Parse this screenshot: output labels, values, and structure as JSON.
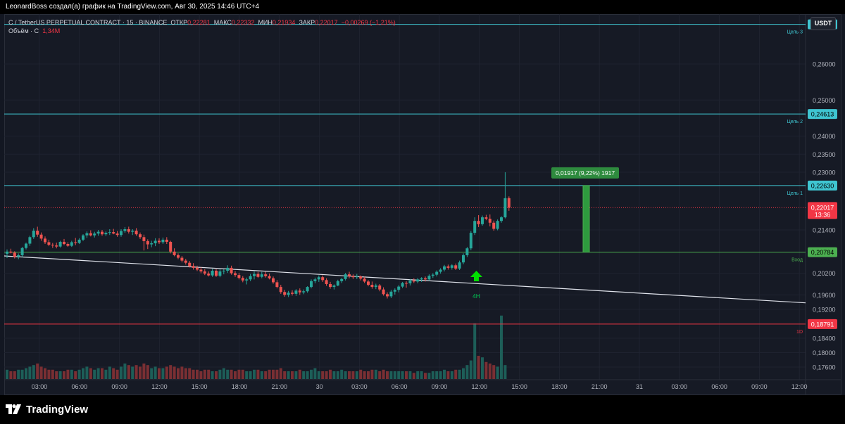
{
  "header": {
    "byline": "LeonardBoss создал(а) график на TradingView.com, Авг 30, 2025 14:46 UTC+4"
  },
  "legend": {
    "symbol": "C / TetherUS PERPETUAL CONTRACT · 15 · BINANCE",
    "open_label": "ОТКР",
    "open": "0,22281",
    "high_label": "МАКС",
    "high": "0,22332",
    "low_label": "МИН",
    "low": "0,21934",
    "close_label": "ЗАКР",
    "close": "0,22017",
    "change": "−0,00269 (−1,21%)",
    "volume_label": "Объём · C",
    "volume": "1,34M"
  },
  "currency": "USDT",
  "footer": {
    "logo_text": "TradingView"
  },
  "colors": {
    "up": "#26a69a",
    "down": "#ef5350",
    "target_line": "#3fc5d1",
    "entry_line": "#4caf50",
    "stop_line": "#f23645",
    "trend_line": "#e0e3eb",
    "measure_box": "#2e9a3e"
  },
  "chart_data": {
    "type": "candlestick",
    "time_ticks": [
      "03:00",
      "06:00",
      "09:00",
      "12:00",
      "15:00",
      "18:00",
      "21:00",
      "30",
      "03:00",
      "06:00",
      "09:00",
      "12:00",
      "15:00",
      "18:00",
      "21:00",
      "31",
      "03:00",
      "06:00",
      "09:00",
      "12:00"
    ],
    "price_ticks": [
      "0,26000",
      "0,25000",
      "0,24000",
      "0,23500",
      "0,23000",
      "0,21400",
      "0,20200",
      "0,19600",
      "0,19200",
      "0,18400",
      "0,18000",
      "0,17600"
    ],
    "candles": [
      [
        0.2074,
        0.2086,
        0.2062,
        0.208
      ],
      [
        0.208,
        0.2088,
        0.2075,
        0.2077
      ],
      [
        0.2077,
        0.2081,
        0.2061,
        0.2066
      ],
      [
        0.2066,
        0.2075,
        0.2059,
        0.207
      ],
      [
        0.207,
        0.2093,
        0.2065,
        0.209
      ],
      [
        0.209,
        0.2105,
        0.2086,
        0.2102
      ],
      [
        0.2102,
        0.2124,
        0.2096,
        0.212
      ],
      [
        0.212,
        0.2145,
        0.2115,
        0.2138
      ],
      [
        0.2138,
        0.2149,
        0.2121,
        0.2127
      ],
      [
        0.2127,
        0.2133,
        0.211,
        0.2116
      ],
      [
        0.2116,
        0.2122,
        0.2101,
        0.2106
      ],
      [
        0.2106,
        0.2113,
        0.2095,
        0.2099
      ],
      [
        0.2099,
        0.2104,
        0.209,
        0.2097
      ],
      [
        0.2097,
        0.2105,
        0.2089,
        0.2094
      ],
      [
        0.2094,
        0.211,
        0.2091,
        0.2107
      ],
      [
        0.2107,
        0.2115,
        0.2098,
        0.2101
      ],
      [
        0.2101,
        0.2106,
        0.2093,
        0.2096
      ],
      [
        0.2096,
        0.211,
        0.2093,
        0.2106
      ],
      [
        0.2106,
        0.2118,
        0.2098,
        0.2104
      ],
      [
        0.2104,
        0.2117,
        0.2101,
        0.2113
      ],
      [
        0.2113,
        0.2128,
        0.2109,
        0.2125
      ],
      [
        0.2125,
        0.2136,
        0.2118,
        0.2131
      ],
      [
        0.2131,
        0.2139,
        0.2122,
        0.2125
      ],
      [
        0.2125,
        0.2135,
        0.2119,
        0.213
      ],
      [
        0.213,
        0.214,
        0.2124,
        0.2135
      ],
      [
        0.2135,
        0.214,
        0.2124,
        0.2128
      ],
      [
        0.2128,
        0.2136,
        0.2123,
        0.2132
      ],
      [
        0.2132,
        0.2142,
        0.2126,
        0.2134
      ],
      [
        0.2134,
        0.2143,
        0.2128,
        0.213
      ],
      [
        0.213,
        0.2137,
        0.2121,
        0.2126
      ],
      [
        0.2126,
        0.2142,
        0.2121,
        0.2137
      ],
      [
        0.2137,
        0.2148,
        0.2132,
        0.2142
      ],
      [
        0.2142,
        0.2149,
        0.213,
        0.2135
      ],
      [
        0.2135,
        0.2142,
        0.2126,
        0.2138
      ],
      [
        0.2138,
        0.2145,
        0.2124,
        0.2128
      ],
      [
        0.2128,
        0.2133,
        0.2115,
        0.212
      ],
      [
        0.212,
        0.2127,
        0.2083,
        0.2109
      ],
      [
        0.2109,
        0.2114,
        0.2087,
        0.21
      ],
      [
        0.21,
        0.211,
        0.2092,
        0.2103
      ],
      [
        0.2103,
        0.2117,
        0.2095,
        0.211
      ],
      [
        0.211,
        0.2117,
        0.2101,
        0.2106
      ],
      [
        0.2106,
        0.2119,
        0.2101,
        0.2113
      ],
      [
        0.2113,
        0.212,
        0.2101,
        0.2107
      ],
      [
        0.2107,
        0.211,
        0.2075,
        0.208
      ],
      [
        0.208,
        0.2089,
        0.2067,
        0.207
      ],
      [
        0.207,
        0.2075,
        0.2059,
        0.2063
      ],
      [
        0.2063,
        0.2068,
        0.205,
        0.2055
      ],
      [
        0.2055,
        0.206,
        0.2044,
        0.2049
      ],
      [
        0.2049,
        0.2054,
        0.2036,
        0.204
      ],
      [
        0.204,
        0.2048,
        0.203,
        0.2035
      ],
      [
        0.2035,
        0.2041,
        0.2026,
        0.203
      ],
      [
        0.203,
        0.2037,
        0.202,
        0.2025
      ],
      [
        0.2025,
        0.2031,
        0.2015,
        0.2019
      ],
      [
        0.2019,
        0.2025,
        0.2011,
        0.2014
      ],
      [
        0.2014,
        0.2032,
        0.201,
        0.2027
      ],
      [
        0.2027,
        0.2031,
        0.201,
        0.2013
      ],
      [
        0.2013,
        0.2031,
        0.2009,
        0.2025
      ],
      [
        0.2025,
        0.2031,
        0.2017,
        0.2027
      ],
      [
        0.2027,
        0.2042,
        0.2021,
        0.2035
      ],
      [
        0.2035,
        0.2041,
        0.2016,
        0.202
      ],
      [
        0.202,
        0.2026,
        0.201,
        0.2015
      ],
      [
        0.2015,
        0.2021,
        0.2003,
        0.2007
      ],
      [
        0.2007,
        0.2012,
        0.1995,
        0.2
      ],
      [
        0.2,
        0.2008,
        0.1989,
        0.2003
      ],
      [
        0.2003,
        0.2018,
        0.1998,
        0.2012
      ],
      [
        0.2012,
        0.2025,
        0.2003,
        0.2018
      ],
      [
        0.2018,
        0.2024,
        0.2007,
        0.201
      ],
      [
        0.201,
        0.2024,
        0.2006,
        0.2017
      ],
      [
        0.2017,
        0.2024,
        0.2008,
        0.2012
      ],
      [
        0.2012,
        0.2019,
        0.2003,
        0.2006
      ],
      [
        0.2006,
        0.2011,
        0.1991,
        0.1995
      ],
      [
        0.1995,
        0.2001,
        0.1978,
        0.1982
      ],
      [
        0.1982,
        0.1988,
        0.1963,
        0.1968
      ],
      [
        0.1968,
        0.1974,
        0.1955,
        0.196
      ],
      [
        0.196,
        0.1971,
        0.1954,
        0.1966
      ],
      [
        0.1966,
        0.1973,
        0.1958,
        0.1963
      ],
      [
        0.1963,
        0.1976,
        0.1957,
        0.1972
      ],
      [
        0.1972,
        0.1978,
        0.196,
        0.1967
      ],
      [
        0.1967,
        0.1975,
        0.1962,
        0.197
      ],
      [
        0.197,
        0.1984,
        0.1966,
        0.1982
      ],
      [
        0.1982,
        0.2003,
        0.1978,
        0.1998
      ],
      [
        0.1998,
        0.2008,
        0.1992,
        0.2003
      ],
      [
        0.2003,
        0.2014,
        0.1996,
        0.2009
      ],
      [
        0.2009,
        0.2014,
        0.1996,
        0.2001
      ],
      [
        0.2001,
        0.2006,
        0.1985,
        0.199
      ],
      [
        0.199,
        0.1996,
        0.1977,
        0.1982
      ],
      [
        0.1982,
        0.1989,
        0.1975,
        0.1986
      ],
      [
        0.1986,
        0.2002,
        0.1984,
        0.1998
      ],
      [
        0.1998,
        0.2007,
        0.1993,
        0.2004
      ],
      [
        0.2004,
        0.2021,
        0.2,
        0.2017
      ],
      [
        0.2017,
        0.2024,
        0.2006,
        0.2012
      ],
      [
        0.2012,
        0.2017,
        0.2004,
        0.2009
      ],
      [
        0.2009,
        0.2018,
        0.2004,
        0.2011
      ],
      [
        0.2011,
        0.2014,
        0.2,
        0.2005
      ],
      [
        0.2005,
        0.201,
        0.1993,
        0.1997
      ],
      [
        0.1997,
        0.2001,
        0.1984,
        0.1988
      ],
      [
        0.1988,
        0.1997,
        0.1977,
        0.1982
      ],
      [
        0.1982,
        0.1991,
        0.1976,
        0.1986
      ],
      [
        0.1986,
        0.199,
        0.197,
        0.1975
      ],
      [
        0.1975,
        0.1981,
        0.1958,
        0.1962
      ],
      [
        0.1962,
        0.1967,
        0.195,
        0.1956
      ],
      [
        0.1956,
        0.1974,
        0.1951,
        0.1969
      ],
      [
        0.1969,
        0.1978,
        0.1961,
        0.1974
      ],
      [
        0.1974,
        0.1987,
        0.1967,
        0.1983
      ],
      [
        0.1983,
        0.1996,
        0.1979,
        0.1993
      ],
      [
        0.1993,
        0.1998,
        0.198,
        0.1992
      ],
      [
        0.1992,
        0.2004,
        0.1986,
        0.2
      ],
      [
        0.2,
        0.2006,
        0.1993,
        0.1997
      ],
      [
        0.1997,
        0.2007,
        0.1992,
        0.2003
      ],
      [
        0.2003,
        0.2009,
        0.1996,
        0.2006
      ],
      [
        0.2006,
        0.2011,
        0.1997,
        0.2003
      ],
      [
        0.2003,
        0.2017,
        0.1999,
        0.2013
      ],
      [
        0.2013,
        0.202,
        0.2007,
        0.2016
      ],
      [
        0.2016,
        0.2028,
        0.2011,
        0.2024
      ],
      [
        0.2024,
        0.2034,
        0.2019,
        0.203
      ],
      [
        0.203,
        0.2043,
        0.2025,
        0.2039
      ],
      [
        0.2039,
        0.2044,
        0.203,
        0.2035
      ],
      [
        0.2035,
        0.2045,
        0.203,
        0.2042
      ],
      [
        0.2042,
        0.2047,
        0.2029,
        0.2033
      ],
      [
        0.2033,
        0.2055,
        0.2029,
        0.205
      ],
      [
        0.205,
        0.2075,
        0.2045,
        0.207
      ],
      [
        0.207,
        0.2093,
        0.2065,
        0.2089
      ],
      [
        0.2089,
        0.2137,
        0.2084,
        0.2132
      ],
      [
        0.2132,
        0.2175,
        0.2126,
        0.2165
      ],
      [
        0.2165,
        0.2181,
        0.2148,
        0.2156
      ],
      [
        0.2156,
        0.218,
        0.2152,
        0.2175
      ],
      [
        0.2175,
        0.2182,
        0.2167,
        0.2171
      ],
      [
        0.2171,
        0.2183,
        0.215,
        0.216
      ],
      [
        0.216,
        0.2166,
        0.2138,
        0.2143
      ],
      [
        0.2143,
        0.2169,
        0.2139,
        0.2165
      ],
      [
        0.2165,
        0.2178,
        0.216,
        0.2175
      ],
      [
        0.2175,
        0.23,
        0.2172,
        0.2228
      ],
      [
        0.2228,
        0.2233,
        0.2193,
        0.2202
      ]
    ],
    "volume": [
      6,
      5,
      5,
      6,
      6,
      7,
      8,
      9,
      10,
      8,
      7,
      6,
      6,
      5,
      5,
      5,
      6,
      6,
      5,
      6,
      7,
      8,
      7,
      6,
      7,
      7,
      6,
      8,
      7,
      6,
      8,
      10,
      9,
      8,
      9,
      8,
      10,
      9,
      7,
      8,
      7,
      7,
      8,
      9,
      8,
      7,
      8,
      7,
      7,
      6,
      6,
      5,
      6,
      6,
      5,
      5,
      6,
      7,
      6,
      6,
      5,
      6,
      6,
      5,
      5,
      6,
      6,
      5,
      5,
      6,
      6,
      6,
      7,
      5,
      5,
      5,
      5,
      6,
      5,
      5,
      6,
      7,
      5,
      5,
      5,
      6,
      5,
      5,
      6,
      5,
      5,
      5,
      5,
      6,
      5,
      5,
      6,
      6,
      5,
      6,
      5,
      5,
      5,
      5,
      5,
      5,
      5,
      4,
      5,
      5,
      4,
      4,
      5,
      5,
      5,
      6,
      5,
      5,
      6,
      6,
      7,
      9,
      12,
      36,
      15,
      14,
      11,
      10,
      9,
      8,
      41,
      9
    ],
    "drawings": {
      "target3": {
        "label": "Цель 3",
        "price": 0.27098,
        "price_label": "0,27098"
      },
      "target2": {
        "label": "Цель 2",
        "price": 0.24613,
        "price_label": "0,24613"
      },
      "target1": {
        "label": "Цель 1",
        "price": 0.2263,
        "price_label": "0,22630"
      },
      "entry": {
        "label": "Вход",
        "price": 0.20784,
        "price_label": "0,20784"
      },
      "stop": {
        "label": "1D",
        "price": 0.18791,
        "price_label": "0,18791"
      },
      "current": {
        "price": 0.22017,
        "price_label": "0,22017",
        "countdown": "13:36"
      },
      "trendline": {
        "start": 0.2068,
        "end": 0.1938
      },
      "measure": {
        "label": "0,01917 (9,22%) 1917"
      },
      "signal": {
        "label": "4H"
      }
    }
  }
}
